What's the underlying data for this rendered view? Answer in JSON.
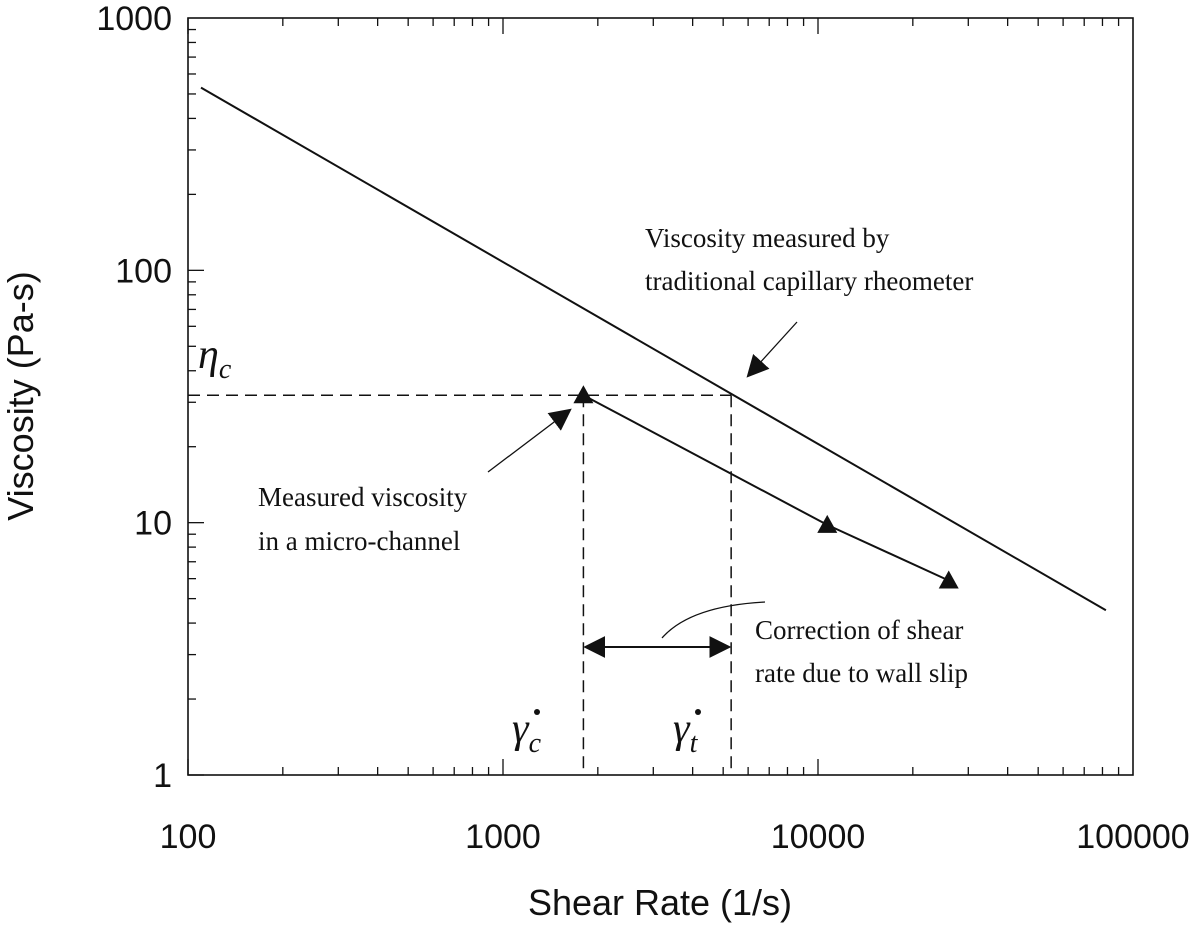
{
  "chart_data": {
    "type": "line",
    "xlabel": "Shear Rate (1/s)",
    "ylabel": "Viscosity (Pa-s)",
    "x_scale": "log",
    "y_scale": "log",
    "xlim": [
      100,
      100000
    ],
    "ylim": [
      1,
      1000
    ],
    "x_tick_labels": [
      "100",
      "1000",
      "10000",
      "100000"
    ],
    "y_tick_labels": [
      "1",
      "10",
      "100",
      "1000"
    ],
    "grid": false,
    "series": [
      {
        "marker": "none",
        "x": [
          110,
          82000
        ],
        "y": [
          530,
          4.5
        ]
      },
      {
        "marker": "triangle",
        "x": [
          1800,
          10700,
          26000
        ],
        "y": [
          32,
          9.8,
          5.9
        ]
      }
    ],
    "reference_lines": {
      "eta_c": 32,
      "gamma_c": 1800,
      "gamma_t": 5300
    },
    "symbols": {
      "eta": "η",
      "eta_sub": "c",
      "gamma": "γ",
      "gamma_c_sub": "c",
      "gamma_t_sub": "t"
    },
    "annotations": {
      "capillary": [
        "Viscosity measured by",
        "traditional capillary rheometer"
      ],
      "micro": [
        "Measured viscosity",
        "in a micro-channel"
      ],
      "correction": [
        "Correction of shear",
        "rate due to wall slip"
      ]
    }
  }
}
